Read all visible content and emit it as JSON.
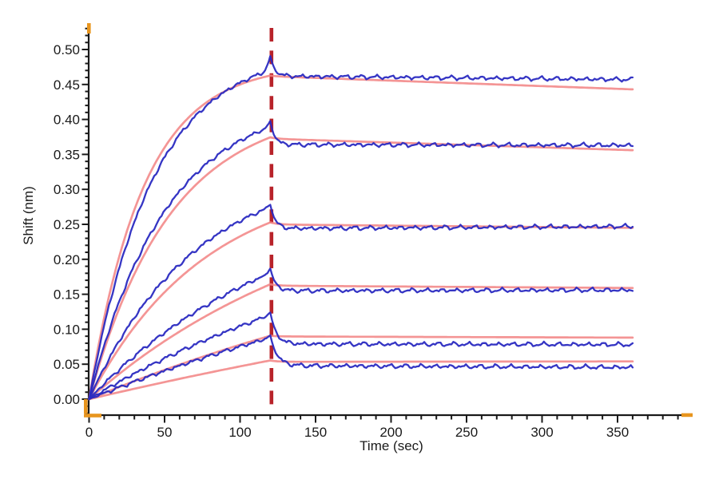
{
  "chart_data": {
    "type": "line",
    "title": "",
    "xlabel": "Time (sec)",
    "ylabel": "Shift (nm)",
    "xlim": [
      0,
      396
    ],
    "ylim": [
      -0.02,
      0.53
    ],
    "x_major_ticks": [
      0,
      50,
      100,
      150,
      200,
      250,
      300,
      350
    ],
    "x_major_tick_labels": [
      "0",
      "50",
      "100",
      "150",
      "200",
      "250",
      "300",
      "350"
    ],
    "x_minor_step": 10,
    "x_minor_max": 390,
    "y_major_ticks": [
      0.0,
      0.05,
      0.1,
      0.15,
      0.2,
      0.25,
      0.3,
      0.35,
      0.4,
      0.45,
      0.5
    ],
    "y_major_tick_labels": [
      "0.00",
      "0.05",
      "0.10",
      "0.15",
      "0.20",
      "0.25",
      "0.30",
      "0.35",
      "0.40",
      "0.45",
      "0.50"
    ],
    "y_minor_step": 0.01,
    "y_minor_min": -0.02,
    "y_minor_max": 0.53,
    "grid": false,
    "legend": "none",
    "association_end_sec": 120,
    "dissociation_end_sec": 360,
    "phase_boundary": {
      "time_sec": 120,
      "style": "dashed",
      "color": "#b8232a"
    },
    "colors": {
      "data_trace": "#2a2ac1",
      "fit_trace": "#f28282",
      "axis": "#1a1a1a",
      "range_marker": "#e8951e",
      "background": "#ffffff"
    },
    "series": [
      {
        "name": "trace-1",
        "fit": {
          "amplitude": 0.48,
          "k_obs": 0.0277,
          "assoc_end": 0.465,
          "step_drop": 0.001,
          "dissoc_end": 0.443,
          "samples": [
            [
              0,
              0
            ],
            [
              30,
              0.271
            ],
            [
              60,
              0.389
            ],
            [
              90,
              0.44
            ],
            [
              120,
              0.465
            ],
            [
              240,
              0.454
            ],
            [
              360,
              0.443
            ]
          ]
        },
        "data": {
          "amplitude": 0.5,
          "k_obs": 0.0235,
          "assoc_end": 0.47,
          "spike_peak": 0.49,
          "dissoc_start": 0.462,
          "dissoc_end": 0.457,
          "samples": [
            [
              0,
              0
            ],
            [
              30,
              0.253
            ],
            [
              60,
              0.378
            ],
            [
              90,
              0.44
            ],
            [
              119,
              0.47
            ],
            [
              120,
              0.49
            ],
            [
              150,
              0.461
            ],
            [
              240,
              0.46
            ],
            [
              360,
              0.457
            ]
          ]
        }
      },
      {
        "name": "trace-2",
        "fit": {
          "amplitude": 0.42,
          "k_obs": 0.0185,
          "assoc_end": 0.374,
          "step_drop": 0.002,
          "dissoc_end": 0.356,
          "samples": [
            [
              0,
              0
            ],
            [
              30,
              0.179
            ],
            [
              60,
              0.282
            ],
            [
              90,
              0.34
            ],
            [
              120,
              0.374
            ],
            [
              240,
              0.365
            ],
            [
              360,
              0.356
            ]
          ]
        },
        "data": {
          "amplitude": 0.43,
          "k_obs": 0.0196,
          "assoc_end": 0.389,
          "spike_peak": 0.397,
          "dissoc_start": 0.364,
          "dissoc_end": 0.363,
          "samples": [
            [
              0,
              0
            ],
            [
              30,
              0.191
            ],
            [
              60,
              0.297
            ],
            [
              90,
              0.356
            ],
            [
              119,
              0.389
            ],
            [
              120,
              0.397
            ],
            [
              150,
              0.365
            ],
            [
              240,
              0.364
            ],
            [
              360,
              0.363
            ]
          ]
        }
      },
      {
        "name": "trace-3",
        "fit": {
          "amplitude": 0.32,
          "k_obs": 0.013,
          "assoc_end": 0.253,
          "step_drop": 0.003,
          "dissoc_end": 0.245,
          "samples": [
            [
              0,
              0
            ],
            [
              30,
              0.103
            ],
            [
              60,
              0.173
            ],
            [
              90,
              0.221
            ],
            [
              120,
              0.253
            ],
            [
              240,
              0.249
            ],
            [
              360,
              0.245
            ]
          ]
        },
        "data": {
          "amplitude": 0.335,
          "k_obs": 0.0143,
          "assoc_end": 0.275,
          "spike_peak": 0.279,
          "dissoc_start": 0.244,
          "dissoc_end": 0.247,
          "samples": [
            [
              0,
              0
            ],
            [
              30,
              0.117
            ],
            [
              60,
              0.193
            ],
            [
              90,
              0.242
            ],
            [
              119,
              0.275
            ],
            [
              120,
              0.279
            ],
            [
              150,
              0.245
            ],
            [
              240,
              0.245
            ],
            [
              360,
              0.247
            ]
          ]
        }
      },
      {
        "name": "trace-4",
        "fit": {
          "amplitude": 0.32,
          "k_obs": 0.006,
          "assoc_end": 0.164,
          "step_drop": 0.002,
          "dissoc_end": 0.159,
          "samples": [
            [
              0,
              0
            ],
            [
              30,
              0.053
            ],
            [
              60,
              0.097
            ],
            [
              90,
              0.134
            ],
            [
              120,
              0.164
            ],
            [
              240,
              0.161
            ],
            [
              360,
              0.159
            ]
          ]
        },
        "data": {
          "amplitude": 0.3,
          "k_obs": 0.00764,
          "assoc_end": 0.18,
          "spike_peak": 0.187,
          "dissoc_start": 0.155,
          "dissoc_end": 0.156,
          "samples": [
            [
              0,
              0
            ],
            [
              30,
              0.061
            ],
            [
              60,
              0.11
            ],
            [
              90,
              0.149
            ],
            [
              119,
              0.18
            ],
            [
              120,
              0.187
            ],
            [
              150,
              0.156
            ],
            [
              240,
              0.155
            ],
            [
              360,
              0.156
            ]
          ]
        }
      },
      {
        "name": "trace-5",
        "fit": {
          "amplitude": 0.3,
          "k_obs": 0.003,
          "assoc_end": 0.09,
          "step_drop": 0.001,
          "dissoc_end": 0.088,
          "samples": [
            [
              0,
              0
            ],
            [
              30,
              0.026
            ],
            [
              60,
              0.049
            ],
            [
              90,
              0.071
            ],
            [
              120,
              0.09
            ],
            [
              240,
              0.089
            ],
            [
              360,
              0.088
            ]
          ]
        },
        "data": {
          "amplitude": 0.28,
          "k_obs": 0.00466,
          "assoc_end": 0.121,
          "spike_peak": 0.124,
          "dissoc_start": 0.079,
          "dissoc_end": 0.078,
          "samples": [
            [
              0,
              0
            ],
            [
              30,
              0.037
            ],
            [
              60,
              0.068
            ],
            [
              90,
              0.096
            ],
            [
              119,
              0.121
            ],
            [
              120,
              0.124
            ],
            [
              150,
              0.081
            ],
            [
              240,
              0.079
            ],
            [
              360,
              0.078
            ]
          ]
        }
      },
      {
        "name": "trace-6",
        "fit": {
          "amplitude": 0.3,
          "k_obs": 0.0017,
          "assoc_end": 0.056,
          "step_drop": 0.002,
          "dissoc_end": 0.054,
          "samples": [
            [
              0,
              0
            ],
            [
              30,
              0.015
            ],
            [
              60,
              0.029
            ],
            [
              90,
              0.043
            ],
            [
              120,
              0.056
            ],
            [
              240,
              0.055
            ],
            [
              360,
              0.054
            ]
          ]
        },
        "data": {
          "amplitude": 0.3,
          "k_obs": 0.00289,
          "assoc_end": 0.088,
          "spike_peak": 0.091,
          "dissoc_start": 0.048,
          "dissoc_end": 0.0455,
          "samples": [
            [
              0,
              0
            ],
            [
              30,
              0.025
            ],
            [
              60,
              0.048
            ],
            [
              90,
              0.069
            ],
            [
              119,
              0.088
            ],
            [
              120,
              0.091
            ],
            [
              150,
              0.05
            ],
            [
              240,
              0.047
            ],
            [
              360,
              0.046
            ]
          ]
        }
      }
    ]
  }
}
